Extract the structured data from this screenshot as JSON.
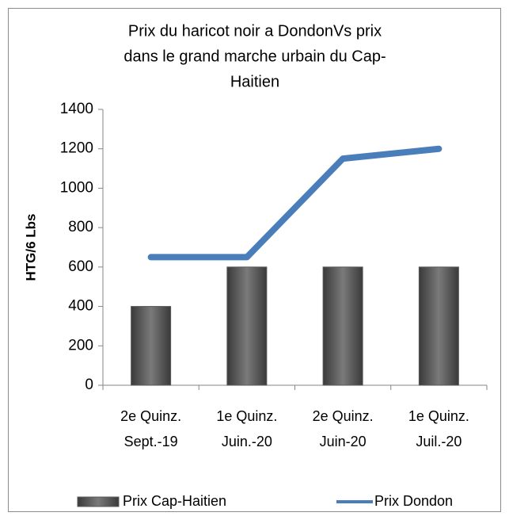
{
  "chart_data": {
    "type": "bar-line",
    "title": [
      "Prix du haricot noir a  DondonVs prix",
      "dans le grand marche urbain du Cap-",
      "Haitien"
    ],
    "y_label": "HTG/6 Lbs",
    "categories": [
      "2e Quinz. Sept.-19",
      "1e Quinz. Juin.-20",
      "2e Quinz. Juin-20",
      "1e Quinz. Juil.-20"
    ],
    "series": [
      {
        "name": "Prix Cap-Haitien",
        "type": "bar",
        "color": "#595959",
        "values": [
          400,
          600,
          600,
          600
        ]
      },
      {
        "name": "Prix Dondon",
        "type": "line",
        "color": "#4a7ebb",
        "values": [
          650,
          650,
          1150,
          1200
        ]
      }
    ],
    "ylim": [
      0,
      1400
    ],
    "yticks": [
      0,
      200,
      400,
      600,
      800,
      1000,
      1200,
      1400
    ],
    "grid": false,
    "legend": "bottom"
  }
}
